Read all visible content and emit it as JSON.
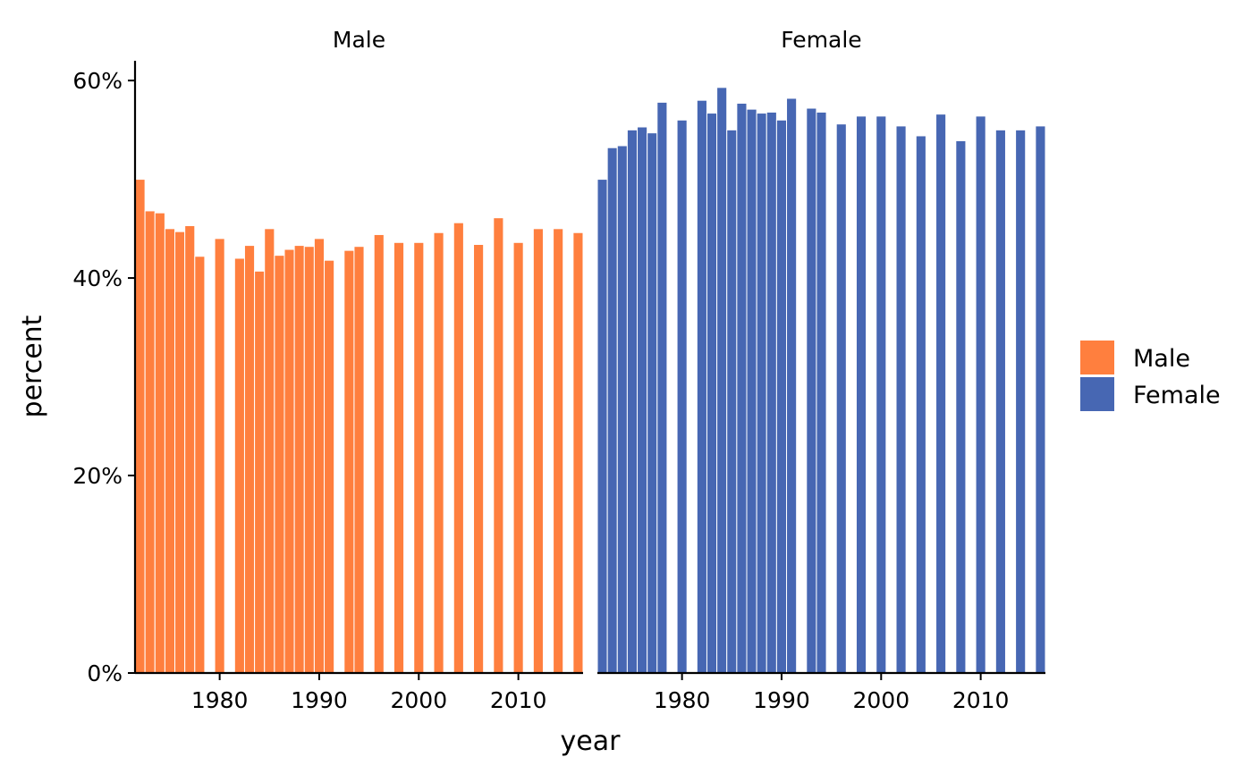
{
  "chart_data": {
    "type": "bar",
    "xlabel": "year",
    "ylabel": "percent",
    "ylim": [
      0,
      0.62
    ],
    "y_ticks": [
      0,
      0.2,
      0.4,
      0.6
    ],
    "y_tick_labels": [
      "0%",
      "20%",
      "40%",
      "60%"
    ],
    "xlim": [
      1971.5,
      2016.5
    ],
    "x_ticks": [
      1980,
      1990,
      2000,
      2010
    ],
    "x_tick_labels": [
      "1980",
      "1990",
      "2000",
      "2010"
    ],
    "grid": false,
    "legend_position": "right",
    "colors": {
      "Male": "#FF7F3E",
      "Female": "#4767B3"
    },
    "x": [
      1972,
      1973,
      1974,
      1975,
      1976,
      1977,
      1978,
      1980,
      1982,
      1983,
      1984,
      1985,
      1986,
      1987,
      1988,
      1989,
      1990,
      1991,
      1993,
      1994,
      1996,
      1998,
      2000,
      2002,
      2004,
      2006,
      2008,
      2010,
      2012,
      2014,
      2016
    ],
    "series": [
      {
        "name": "Male",
        "values": [
          0.5,
          0.468,
          0.466,
          0.45,
          0.447,
          0.453,
          0.422,
          0.44,
          0.42,
          0.433,
          0.407,
          0.45,
          0.423,
          0.429,
          0.433,
          0.432,
          0.44,
          0.418,
          0.428,
          0.432,
          0.444,
          0.436,
          0.436,
          0.446,
          0.456,
          0.434,
          0.461,
          0.436,
          0.45,
          0.45,
          0.446
        ]
      },
      {
        "name": "Female",
        "values": [
          0.5,
          0.532,
          0.534,
          0.55,
          0.553,
          0.547,
          0.578,
          0.56,
          0.58,
          0.567,
          0.593,
          0.55,
          0.577,
          0.571,
          0.567,
          0.568,
          0.56,
          0.582,
          0.572,
          0.568,
          0.556,
          0.564,
          0.564,
          0.554,
          0.544,
          0.566,
          0.539,
          0.564,
          0.55,
          0.55,
          0.554
        ]
      }
    ]
  }
}
